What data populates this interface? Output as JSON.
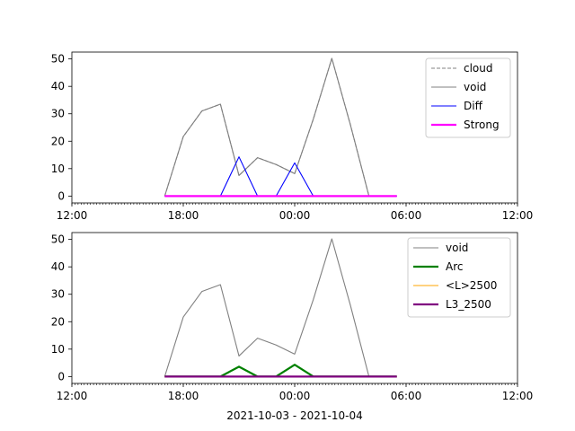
{
  "figure": {
    "xlabel": "2021-10-03 - 2021-10-04"
  },
  "colors": {
    "cloud": "#808080",
    "void": "#808080",
    "Diff": "#0000ff",
    "Strong": "#ff00ff",
    "Arc": "#008000",
    "L2500": "#ffa500",
    "L3_2500": "#800080"
  },
  "chart_data": [
    {
      "type": "line",
      "x_unit": "hours since 2021-10-03 12:00",
      "xlim": [
        0,
        24
      ],
      "ylim": [
        -2.5,
        52.5
      ],
      "xticks": [
        {
          "value": 0,
          "label": "12:00"
        },
        {
          "value": 6,
          "label": "18:00"
        },
        {
          "value": 12,
          "label": "00:00"
        },
        {
          "value": 18,
          "label": "06:00"
        },
        {
          "value": 24,
          "label": "12:00"
        }
      ],
      "yticks": [
        0,
        10,
        20,
        30,
        40,
        50
      ],
      "legend_position": "upper-right",
      "series": [
        {
          "name": "cloud",
          "color": "#808080",
          "dash": true,
          "width": 1,
          "x": [
            5,
            6,
            7,
            8,
            9,
            10,
            11,
            12,
            13,
            14,
            15,
            16,
            17,
            17.5
          ],
          "y": [
            0,
            21.7,
            31,
            33.5,
            7.5,
            14,
            11.5,
            8.2,
            28,
            50.2,
            26,
            0,
            0,
            0
          ]
        },
        {
          "name": "void",
          "color": "#808080",
          "dash": false,
          "width": 1,
          "x": [
            5,
            6,
            7,
            8,
            9,
            10,
            11,
            12,
            13,
            14,
            15,
            16,
            17,
            17.5
          ],
          "y": [
            0,
            21.7,
            31,
            33.5,
            7.5,
            14,
            11.5,
            8.2,
            28,
            50.2,
            26,
            0,
            0,
            0
          ]
        },
        {
          "name": "Diff",
          "color": "#0000ff",
          "dash": false,
          "width": 1,
          "x": [
            5,
            6,
            7,
            8,
            9,
            10,
            11,
            12,
            13,
            14,
            15,
            16,
            17,
            17.5
          ],
          "y": [
            0,
            0,
            0,
            0,
            14.3,
            0,
            0,
            12.1,
            0,
            0,
            0,
            0,
            0,
            0
          ]
        },
        {
          "name": "Strong",
          "color": "#ff00ff",
          "dash": false,
          "width": 2,
          "x": [
            5,
            6,
            7,
            8,
            9,
            10,
            11,
            12,
            13,
            14,
            15,
            16,
            17,
            17.5
          ],
          "y": [
            0,
            0,
            0,
            0,
            0,
            0,
            0,
            0,
            0,
            0,
            0,
            0,
            0,
            0
          ]
        }
      ]
    },
    {
      "type": "line",
      "x_unit": "hours since 2021-10-03 12:00",
      "xlim": [
        0,
        24
      ],
      "ylim": [
        -2.5,
        52.5
      ],
      "xticks": [
        {
          "value": 0,
          "label": "12:00"
        },
        {
          "value": 6,
          "label": "18:00"
        },
        {
          "value": 12,
          "label": "00:00"
        },
        {
          "value": 18,
          "label": "06:00"
        },
        {
          "value": 24,
          "label": "12:00"
        }
      ],
      "yticks": [
        0,
        10,
        20,
        30,
        40,
        50
      ],
      "legend_position": "upper-right",
      "series": [
        {
          "name": "void",
          "color": "#808080",
          "dash": false,
          "width": 1,
          "x": [
            5,
            6,
            7,
            8,
            9,
            10,
            11,
            12,
            13,
            14,
            15,
            16,
            17,
            17.5
          ],
          "y": [
            0,
            21.7,
            31,
            33.5,
            7.5,
            14,
            11.5,
            8.2,
            28,
            50.2,
            26,
            0,
            0,
            0
          ]
        },
        {
          "name": "Arc",
          "color": "#008000",
          "dash": false,
          "width": 2,
          "x": [
            5,
            6,
            7,
            8,
            9,
            10,
            11,
            12,
            13,
            14,
            15,
            16,
            17,
            17.5
          ],
          "y": [
            0,
            0,
            0,
            0,
            3.6,
            0,
            0,
            4.3,
            0,
            0,
            0,
            0,
            0,
            0
          ]
        },
        {
          "name": "<L>2500",
          "color": "#ffa500",
          "dash": false,
          "width": 1,
          "x": [
            5,
            6,
            7,
            8,
            9,
            10,
            11,
            12,
            13,
            14,
            15,
            16,
            17,
            17.5
          ],
          "y": [
            0,
            0,
            0,
            0,
            0,
            0,
            0,
            0,
            0,
            0,
            0,
            0,
            0,
            0
          ]
        },
        {
          "name": "L3_2500",
          "color": "#800080",
          "dash": false,
          "width": 2,
          "x": [
            5,
            6,
            7,
            8,
            9,
            10,
            11,
            12,
            13,
            14,
            15,
            16,
            17,
            17.5
          ],
          "y": [
            0,
            0,
            0,
            0,
            0,
            0,
            0,
            0,
            0,
            0,
            0,
            0,
            0,
            0
          ]
        }
      ]
    }
  ]
}
